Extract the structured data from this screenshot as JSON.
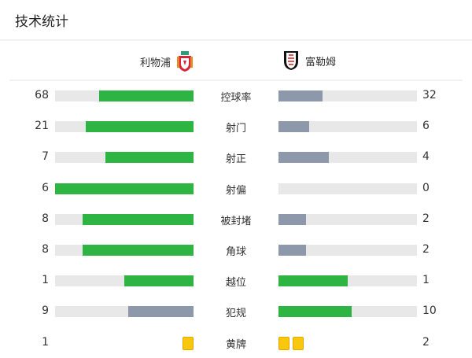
{
  "title": "技术统计",
  "home": {
    "name": "利物浦",
    "logo": "liverpool-crest"
  },
  "away": {
    "name": "富勒姆",
    "logo": "fulham-crest"
  },
  "colors": {
    "leader": "#2db443",
    "trailer": "#8e98ab",
    "track": "#e8e8e8",
    "card": "#f8c80f"
  },
  "stats": [
    {
      "label": "控球率",
      "home": 68,
      "away": 32
    },
    {
      "label": "射门",
      "home": 21,
      "away": 6
    },
    {
      "label": "射正",
      "home": 7,
      "away": 4
    },
    {
      "label": "射偏",
      "home": 6,
      "away": 0
    },
    {
      "label": "被封堵",
      "home": 8,
      "away": 2
    },
    {
      "label": "角球",
      "home": 8,
      "away": 2
    },
    {
      "label": "越位",
      "home": 1,
      "away": 1
    },
    {
      "label": "犯规",
      "home": 9,
      "away": 10
    },
    {
      "label": "黄牌",
      "home": 1,
      "away": 2,
      "type": "cards"
    }
  ]
}
